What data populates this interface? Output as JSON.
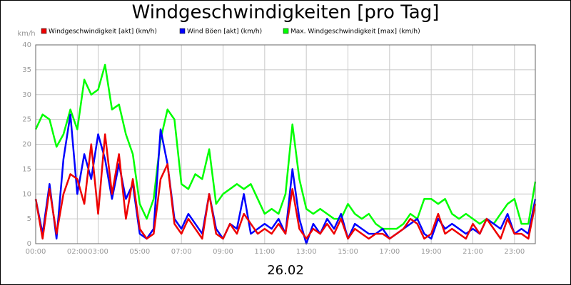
{
  "chart_data": {
    "type": "line",
    "title": "Windgeschwindigkeiten [pro Tag]",
    "y_label": "km/h",
    "x_label": "26.02",
    "xlim": [
      0,
      1440
    ],
    "xticks": [
      {
        "value": 0,
        "label": "00:00"
      },
      {
        "value": 120,
        "label": "02:00"
      },
      {
        "value": 180,
        "label": "03:00"
      },
      {
        "value": 300,
        "label": "05:00"
      },
      {
        "value": 420,
        "label": "07:00"
      },
      {
        "value": 540,
        "label": "09:00"
      },
      {
        "value": 660,
        "label": "11:00"
      },
      {
        "value": 780,
        "label": "13:00"
      },
      {
        "value": 900,
        "label": "15:00"
      },
      {
        "value": 1020,
        "label": "17:00"
      },
      {
        "value": 1140,
        "label": "19:00"
      },
      {
        "value": 1260,
        "label": "21:00"
      },
      {
        "value": 1380,
        "label": "23:00"
      }
    ],
    "ylim": [
      0,
      40
    ],
    "yticks": [
      0,
      5,
      10,
      15,
      20,
      25,
      30,
      35,
      40
    ],
    "grid": true,
    "x": [
      0,
      20,
      40,
      60,
      80,
      100,
      120,
      140,
      160,
      180,
      200,
      220,
      240,
      260,
      280,
      300,
      320,
      340,
      360,
      380,
      400,
      420,
      440,
      460,
      480,
      500,
      520,
      540,
      560,
      580,
      600,
      620,
      640,
      660,
      680,
      700,
      720,
      740,
      760,
      780,
      800,
      820,
      840,
      860,
      880,
      900,
      920,
      940,
      960,
      980,
      1000,
      1020,
      1040,
      1060,
      1080,
      1100,
      1120,
      1140,
      1160,
      1180,
      1200,
      1220,
      1240,
      1260,
      1280,
      1300,
      1320,
      1340,
      1360,
      1380,
      1400,
      1420,
      1440
    ],
    "series": [
      {
        "name": "Max. Windgeschwindigkeit [max] (km/h)",
        "color": "#00ff00",
        "values": [
          23,
          26,
          25,
          19.5,
          22,
          27,
          23,
          33,
          30,
          31,
          36,
          27,
          28,
          22,
          18,
          8,
          5,
          9,
          21,
          27,
          25,
          12,
          11,
          14,
          13,
          19,
          8,
          10,
          11,
          12,
          11,
          12,
          9,
          6,
          7,
          6,
          10,
          24,
          13,
          7,
          6,
          7,
          6,
          5,
          5,
          8,
          6,
          5,
          6,
          4,
          3,
          3,
          3,
          4,
          6,
          5,
          9,
          9,
          8,
          9,
          6,
          5,
          6,
          5,
          4,
          5,
          4,
          6,
          8,
          9,
          4,
          4,
          12.5
        ]
      },
      {
        "name": "Wind Böen [akt] (km/h)",
        "color": "#0000ff",
        "values": [
          9,
          2,
          12,
          1,
          17,
          26,
          10,
          18,
          13,
          22,
          17,
          9,
          16,
          9,
          12,
          2,
          1,
          3,
          23,
          16,
          5,
          3,
          6,
          4,
          2,
          10,
          3,
          1,
          4,
          3,
          10,
          2,
          3,
          4,
          3,
          5,
          2,
          15,
          5,
          0,
          4,
          2,
          5,
          3,
          6,
          1,
          4,
          3,
          2,
          2,
          3,
          1,
          2,
          3,
          4,
          5,
          2,
          1,
          5,
          3,
          4,
          3,
          2,
          3,
          2,
          5,
          4,
          3,
          6,
          2,
          3,
          2,
          9
        ]
      },
      {
        "name": "Windgeschwindigkeit [akt] (km/h)",
        "color": "#ee0000",
        "values": [
          9,
          1,
          11,
          2,
          10,
          14,
          13,
          8,
          20,
          6,
          22,
          10,
          18,
          5,
          13,
          3,
          1,
          2,
          13,
          16,
          4,
          2,
          5,
          3,
          1,
          10,
          2,
          1,
          4,
          2,
          6,
          4,
          2,
          3,
          2,
          4,
          2,
          11,
          3,
          1,
          3,
          2,
          4,
          2,
          5,
          1,
          3,
          2,
          1,
          2,
          2,
          1,
          2,
          3,
          5,
          4,
          1,
          2,
          6,
          2,
          3,
          2,
          1,
          4,
          2,
          5,
          3,
          1,
          5,
          2,
          2,
          1,
          8
        ]
      }
    ]
  }
}
